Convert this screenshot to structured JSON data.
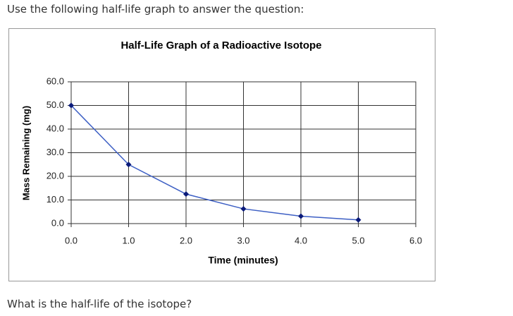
{
  "question_intro": "Use the following half-life graph to answer the question:",
  "question": "What is the half-life of the isotope?",
  "chart_data": {
    "type": "line",
    "title": "Half-Life Graph of a Radioactive Isotope",
    "x_label": "Time (minutes)",
    "y_label": "Mass Remaining (mg)",
    "x": [
      0,
      1,
      2,
      3,
      4,
      5
    ],
    "values": [
      50,
      25,
      12.5,
      6.25,
      3.125,
      1.5625
    ],
    "color": "#3d5fc4",
    "marker_color": "#0a1a7a",
    "xlim": [
      0,
      6
    ],
    "ylim": [
      0,
      60
    ],
    "xticks": [
      {
        "value": 0,
        "label": "0.0"
      },
      {
        "value": 1,
        "label": "1.0"
      },
      {
        "value": 2,
        "label": "2.0"
      },
      {
        "value": 3,
        "label": "3.0"
      },
      {
        "value": 4,
        "label": "4.0"
      },
      {
        "value": 5,
        "label": "5.0"
      },
      {
        "value": 6,
        "label": "6.0"
      }
    ],
    "yticks": [
      {
        "value": 0,
        "label": "0.0"
      },
      {
        "value": 10,
        "label": "10.0"
      },
      {
        "value": 20,
        "label": "20.0"
      },
      {
        "value": 30,
        "label": "30.0"
      },
      {
        "value": 40,
        "label": "40.0"
      },
      {
        "value": 50,
        "label": "50.0"
      },
      {
        "value": 60,
        "label": "60.0"
      }
    ],
    "grid": true
  }
}
